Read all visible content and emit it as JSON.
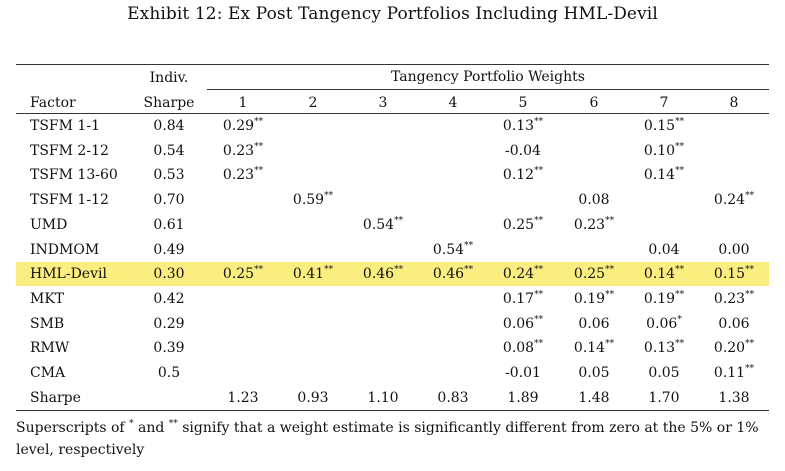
{
  "title": "Exhibit 12: Ex Post Tangency Portfolios Including HML-Devil",
  "header": {
    "factor": "Factor",
    "indiv_line1": "Indiv.",
    "indiv_line2": "Sharpe",
    "group_label": "Tangency Portfolio Weights",
    "portfolio_numbers": [
      "1",
      "2",
      "3",
      "4",
      "5",
      "6",
      "7",
      "8"
    ]
  },
  "highlight_row": "HML-Devil",
  "highlight_color": "#fbee80",
  "rows": [
    {
      "factor": "TSFM 1-1",
      "sharpe": "0.84",
      "weights": [
        {
          "v": "0.29",
          "s": "**"
        },
        null,
        null,
        null,
        {
          "v": "0.13",
          "s": "**"
        },
        null,
        {
          "v": "0.15",
          "s": "**"
        },
        null
      ]
    },
    {
      "factor": "TSFM 2-12",
      "sharpe": "0.54",
      "weights": [
        {
          "v": "0.23",
          "s": "**"
        },
        null,
        null,
        null,
        {
          "v": "-0.04",
          "s": ""
        },
        null,
        {
          "v": "0.10",
          "s": "**"
        },
        null
      ]
    },
    {
      "factor": "TSFM 13-60",
      "sharpe": "0.53",
      "weights": [
        {
          "v": "0.23",
          "s": "**"
        },
        null,
        null,
        null,
        {
          "v": "0.12",
          "s": "**"
        },
        null,
        {
          "v": "0.14",
          "s": "**"
        },
        null
      ]
    },
    {
      "factor": "TSFM 1-12",
      "sharpe": "0.70",
      "weights": [
        null,
        {
          "v": "0.59",
          "s": "**"
        },
        null,
        null,
        null,
        {
          "v": "0.08",
          "s": ""
        },
        null,
        {
          "v": "0.24",
          "s": "**"
        }
      ]
    },
    {
      "factor": "UMD",
      "sharpe": "0.61",
      "weights": [
        null,
        null,
        {
          "v": "0.54",
          "s": "**"
        },
        null,
        {
          "v": "0.25",
          "s": "**"
        },
        {
          "v": "0.23",
          "s": "**"
        },
        null,
        null
      ]
    },
    {
      "factor": "INDMOM",
      "sharpe": "0.49",
      "weights": [
        null,
        null,
        null,
        {
          "v": "0.54",
          "s": "**"
        },
        null,
        null,
        {
          "v": "0.04",
          "s": ""
        },
        {
          "v": "0.00",
          "s": ""
        }
      ]
    },
    {
      "factor": "HML-Devil",
      "sharpe": "0.30",
      "weights": [
        {
          "v": "0.25",
          "s": "**"
        },
        {
          "v": "0.41",
          "s": "**"
        },
        {
          "v": "0.46",
          "s": "**"
        },
        {
          "v": "0.46",
          "s": "**"
        },
        {
          "v": "0.24",
          "s": "**"
        },
        {
          "v": "0.25",
          "s": "**"
        },
        {
          "v": "0.14",
          "s": "**"
        },
        {
          "v": "0.15",
          "s": "**"
        }
      ]
    },
    {
      "factor": "MKT",
      "sharpe": "0.42",
      "weights": [
        null,
        null,
        null,
        null,
        {
          "v": "0.17",
          "s": "**"
        },
        {
          "v": "0.19",
          "s": "**"
        },
        {
          "v": "0.19",
          "s": "**"
        },
        {
          "v": "0.23",
          "s": "**"
        }
      ]
    },
    {
      "factor": "SMB",
      "sharpe": "0.29",
      "weights": [
        null,
        null,
        null,
        null,
        {
          "v": "0.06",
          "s": "**"
        },
        {
          "v": "0.06",
          "s": ""
        },
        {
          "v": "0.06",
          "s": "*"
        },
        {
          "v": "0.06",
          "s": ""
        }
      ]
    },
    {
      "factor": "RMW",
      "sharpe": "0.39",
      "weights": [
        null,
        null,
        null,
        null,
        {
          "v": "0.08",
          "s": "**"
        },
        {
          "v": "0.14",
          "s": "**"
        },
        {
          "v": "0.13",
          "s": "**"
        },
        {
          "v": "0.20",
          "s": "**"
        }
      ]
    },
    {
      "factor": "CMA",
      "sharpe": "0.5",
      "weights": [
        null,
        null,
        null,
        null,
        {
          "v": "-0.01",
          "s": ""
        },
        {
          "v": "0.05",
          "s": ""
        },
        {
          "v": "0.05",
          "s": ""
        },
        {
          "v": "0.11",
          "s": "**"
        }
      ]
    },
    {
      "factor": "Sharpe",
      "sharpe": "",
      "weights": [
        {
          "v": "1.23",
          "s": ""
        },
        {
          "v": "0.93",
          "s": ""
        },
        {
          "v": "1.10",
          "s": ""
        },
        {
          "v": "0.83",
          "s": ""
        },
        {
          "v": "1.89",
          "s": ""
        },
        {
          "v": "1.48",
          "s": ""
        },
        {
          "v": "1.70",
          "s": ""
        },
        {
          "v": "1.38",
          "s": ""
        }
      ]
    }
  ],
  "footnote": {
    "text_a": "Superscripts of ",
    "sym_single": "*",
    "text_b": " and ",
    "sym_double": "**",
    "text_c": " signify that a weight estimate is significantly different from zero at the 5% or 1% level, respectively"
  }
}
